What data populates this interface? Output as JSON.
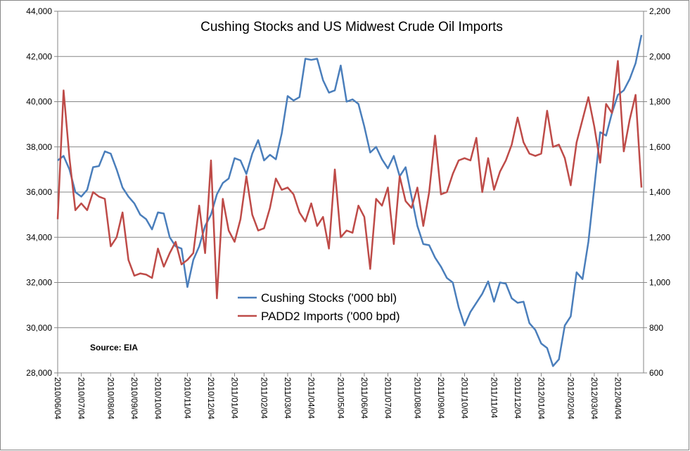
{
  "chart_data": {
    "type": "line",
    "title": "Cushing Stocks and US Midwest Crude Oil Imports",
    "annotation": "Source: EIA",
    "legend": "lower center",
    "grid": true,
    "categories": [
      "2010/06/04",
      null,
      null,
      null,
      "2010/07/04",
      null,
      null,
      null,
      null,
      "2010/08/04",
      null,
      null,
      null,
      "2010/09/04",
      null,
      null,
      null,
      "2010/10/04",
      null,
      null,
      null,
      null,
      "2010/11/04",
      null,
      null,
      null,
      "2010/12/04",
      null,
      null,
      null,
      "2011/01/04",
      null,
      null,
      null,
      null,
      "2011/02/04",
      null,
      null,
      null,
      "2011/03/04",
      null,
      null,
      null,
      "2011/04/04",
      null,
      null,
      null,
      null,
      "2011/05/04",
      null,
      null,
      null,
      "2011/06/04",
      null,
      null,
      null,
      "2011/07/04",
      null,
      null,
      null,
      null,
      "2011/08/04",
      null,
      null,
      null,
      "2011/09/04",
      null,
      null,
      null,
      "2011/10/04",
      null,
      null,
      null,
      null,
      "2011/11/04",
      null,
      null,
      null,
      "2011/12/04",
      null,
      null,
      null,
      "2012/01/04",
      null,
      null,
      null,
      null,
      "2012/02/04",
      null,
      null,
      null,
      "2012/03/04",
      null,
      null,
      null,
      "2012/04/04",
      null,
      null,
      null,
      null
    ],
    "ylim": [
      28000,
      44000
    ],
    "yticks": [
      {
        "value": 28000,
        "label": "28,000"
      },
      {
        "value": 30000,
        "label": "30,000"
      },
      {
        "value": 32000,
        "label": "32,000"
      },
      {
        "value": 34000,
        "label": "34,000"
      },
      {
        "value": 36000,
        "label": "36,000"
      },
      {
        "value": 38000,
        "label": "38,000"
      },
      {
        "value": 40000,
        "label": "40,000"
      },
      {
        "value": 42000,
        "label": "42,000"
      },
      {
        "value": 44000,
        "label": "44,000"
      }
    ],
    "y2lim": [
      600,
      2200
    ],
    "y2ticks": [
      600,
      800,
      {
        "value": 1000,
        "label": "1,000"
      },
      {
        "value": 1200,
        "label": "1,200"
      },
      {
        "value": 1400,
        "label": "1,400"
      },
      {
        "value": 1600,
        "label": "1,600"
      },
      {
        "value": 1800,
        "label": "1,800"
      },
      {
        "value": 2000,
        "label": "2,000"
      },
      {
        "value": 2200,
        "label": "2,200"
      }
    ],
    "series": [
      {
        "name": "Cushing Stocks ('000 bbl)",
        "color": "#4a7ebb",
        "values": [
          37400,
          37600,
          37000,
          36000,
          35800,
          36100,
          37100,
          37150,
          37800,
          37700,
          37000,
          36200,
          35800,
          35500,
          35000,
          34800,
          34350,
          35100,
          35050,
          34000,
          33600,
          33500,
          31800,
          33000,
          33600,
          34500,
          35000,
          35900,
          36400,
          36600,
          37500,
          37400,
          36800,
          37700,
          38300,
          37400,
          37650,
          37450,
          38600,
          40250,
          40050,
          40200,
          41900,
          41850,
          41900,
          40950,
          40400,
          40500,
          41600,
          40000,
          40100,
          39900,
          38900,
          37750,
          38000,
          37450,
          37050,
          37600,
          36700,
          37100,
          35800,
          34500,
          33700,
          33650,
          33100,
          32700,
          32200,
          32000,
          30900,
          30100,
          30700,
          31100,
          31500,
          32050,
          31150,
          32000,
          31950,
          31300,
          31100,
          31150,
          30200,
          29900,
          29300,
          29100,
          28300,
          28600,
          30100,
          30500,
          32450,
          32150,
          33800,
          36200,
          38650,
          38500,
          39500,
          40300,
          40500,
          41000,
          41700,
          42950
        ]
      },
      {
        "name": "PADD2 Imports ('000 bpd)",
        "color": "#be4b48",
        "axis": "y2",
        "values": [
          1280,
          1850,
          1550,
          1320,
          1350,
          1320,
          1400,
          1380,
          1370,
          1160,
          1200,
          1310,
          1100,
          1030,
          1040,
          1035,
          1020,
          1150,
          1070,
          1130,
          1180,
          1080,
          1100,
          1130,
          1340,
          1130,
          1540,
          930,
          1370,
          1230,
          1180,
          1280,
          1470,
          1300,
          1230,
          1240,
          1330,
          1460,
          1410,
          1420,
          1390,
          1310,
          1270,
          1350,
          1250,
          1290,
          1150,
          1500,
          1200,
          1230,
          1220,
          1340,
          1290,
          1060,
          1370,
          1340,
          1420,
          1170,
          1470,
          1360,
          1330,
          1420,
          1250,
          1400,
          1650,
          1390,
          1400,
          1480,
          1540,
          1550,
          1540,
          1640,
          1400,
          1550,
          1410,
          1490,
          1540,
          1610,
          1730,
          1620,
          1570,
          1560,
          1570,
          1760,
          1600,
          1610,
          1550,
          1430,
          1620,
          1720,
          1820,
          1690,
          1530,
          1790,
          1750,
          1980,
          1580,
          1720,
          1830,
          1420
        ]
      }
    ]
  }
}
